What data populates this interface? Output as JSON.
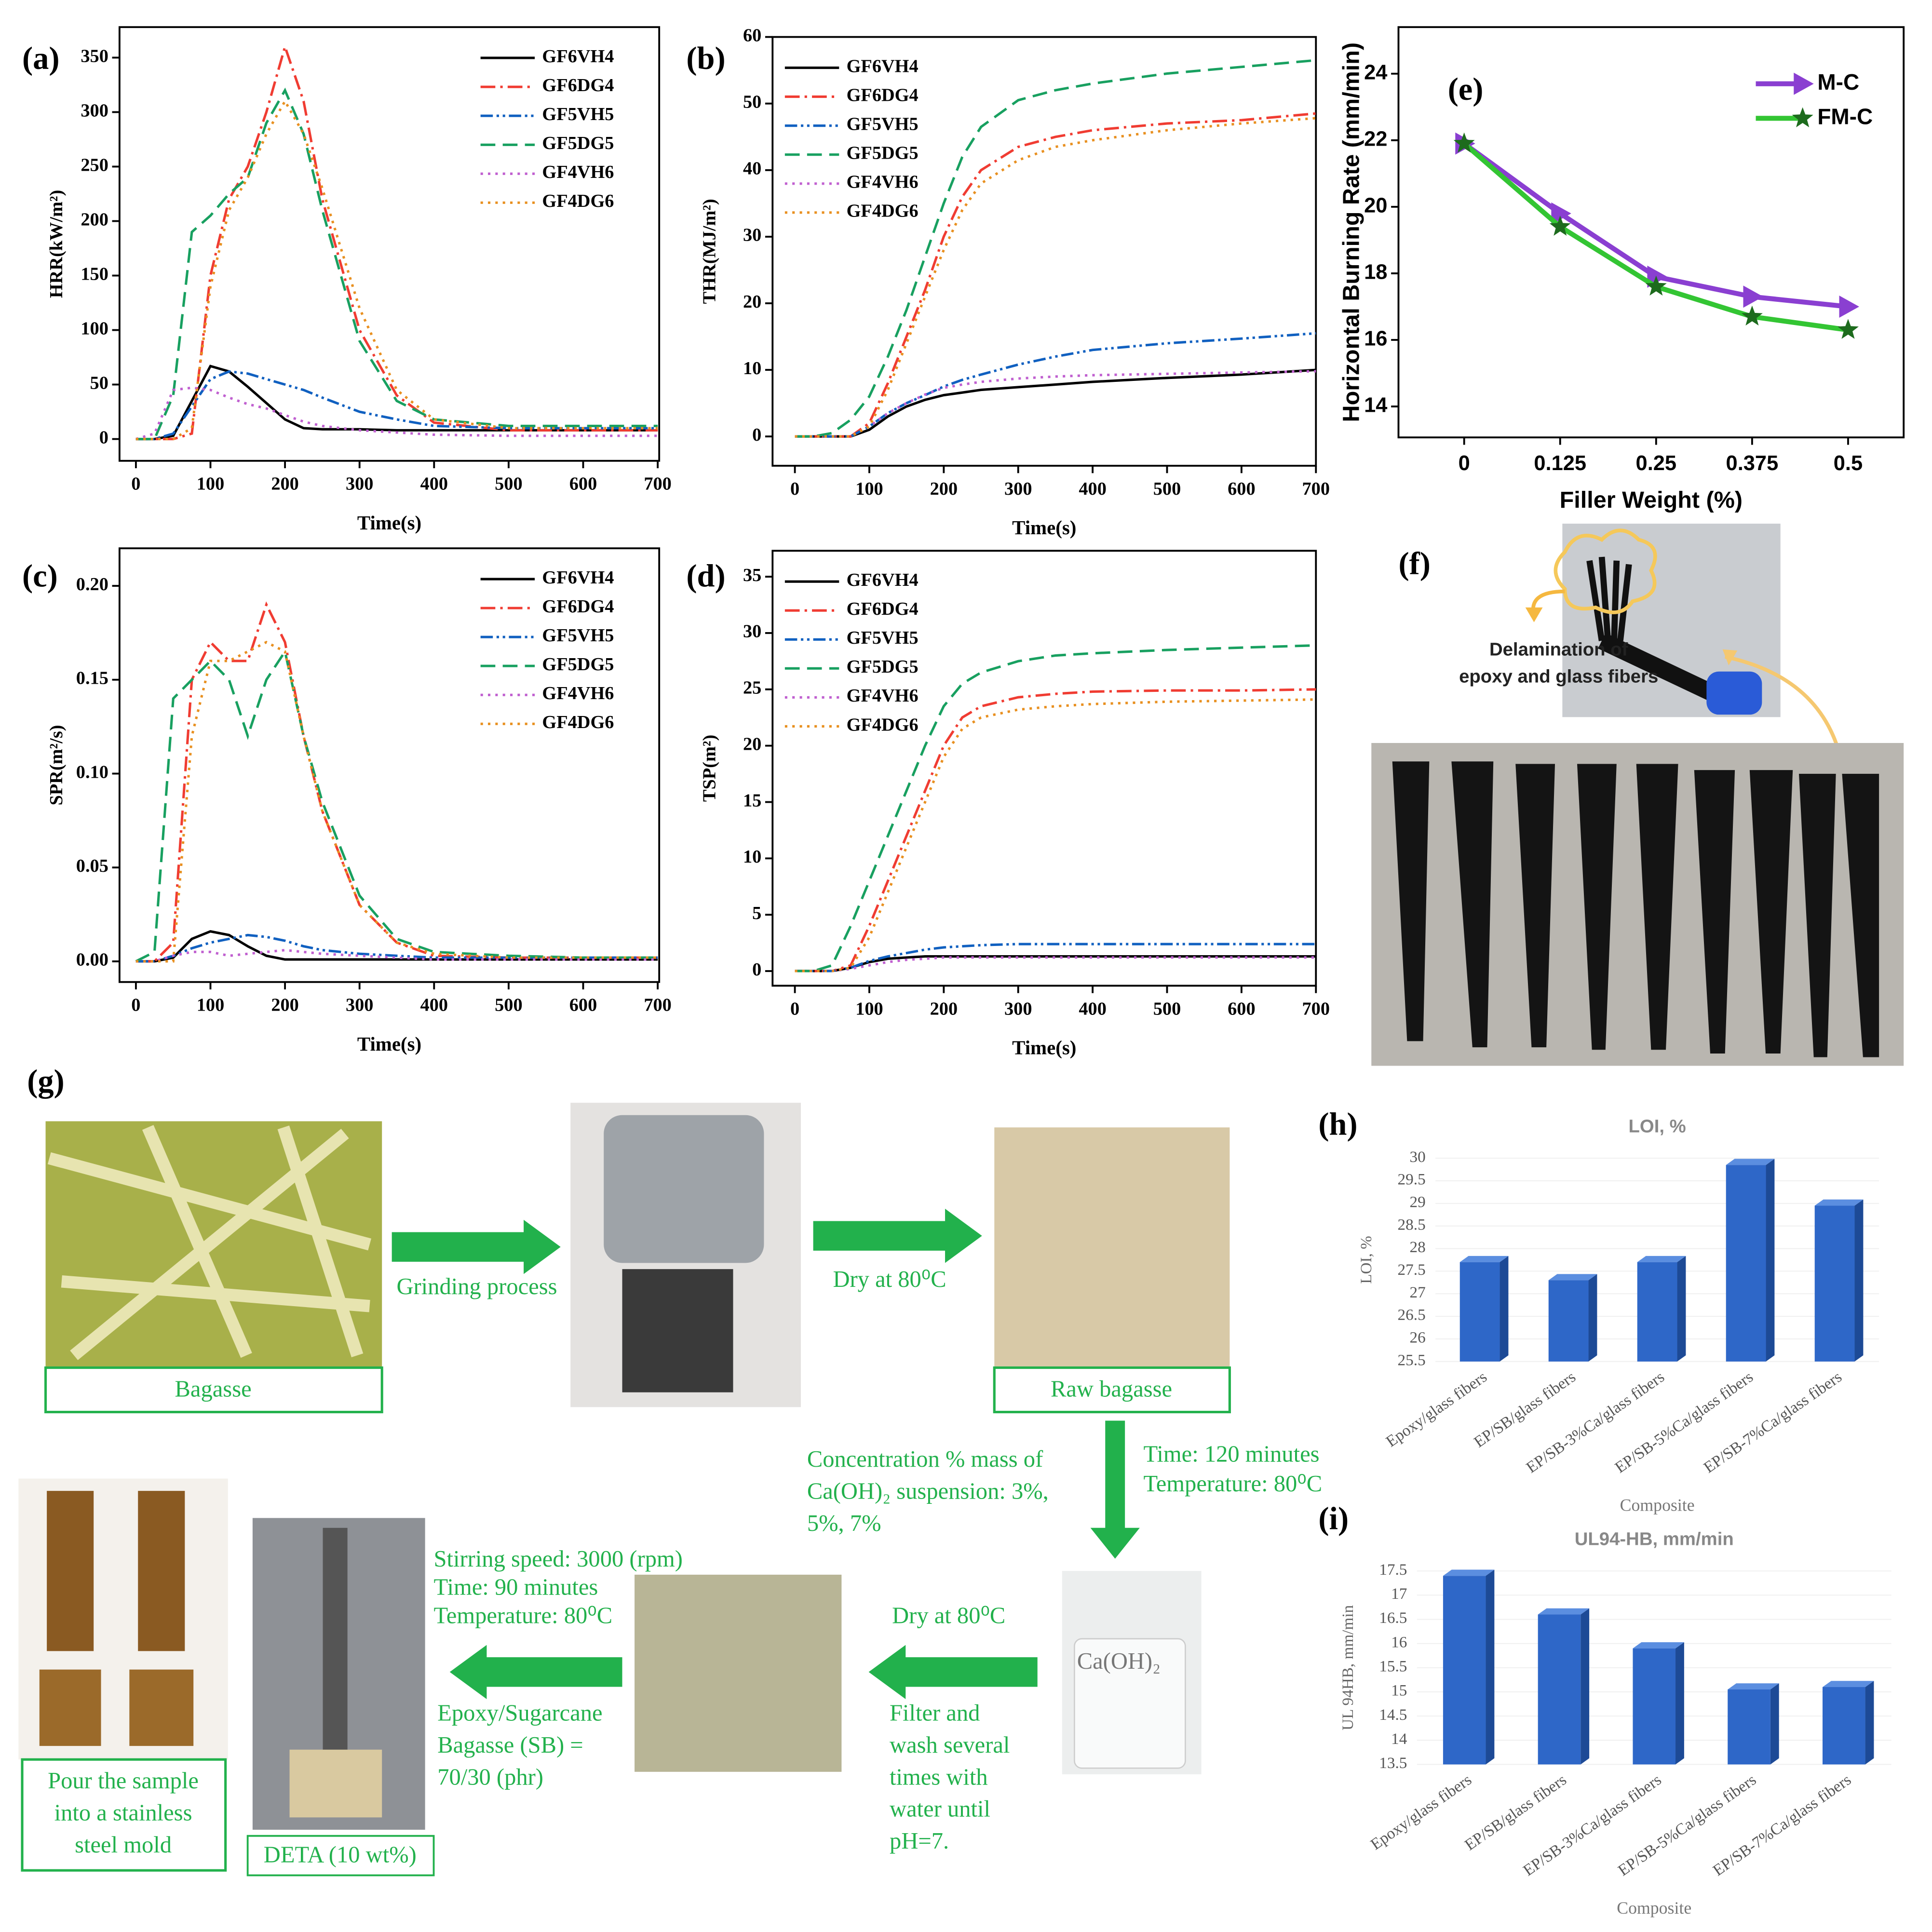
{
  "chart_data": [
    {
      "type": "line",
      "panel": "(a)",
      "xlabel": "Time(s)",
      "ylabel": "HRR(kW/m²)",
      "x": [
        0,
        25,
        50,
        75,
        100,
        125,
        150,
        175,
        200,
        225,
        250,
        300,
        350,
        400,
        500,
        600,
        700
      ],
      "xlim": [
        -22,
        702
      ],
      "xticks": [
        0,
        100,
        200,
        300,
        400,
        500,
        600,
        700
      ],
      "ylim": [
        -20,
        378
      ],
      "yticks": [
        0,
        50,
        100,
        150,
        200,
        250,
        300,
        350
      ],
      "legend": "upper right",
      "series": [
        {
          "name": "GF6VH4",
          "color": "#000000",
          "dash": "solid",
          "values": [
            0,
            0,
            3,
            35,
            67,
            62,
            48,
            33,
            18,
            10,
            9,
            9,
            8,
            8,
            8,
            8,
            8
          ]
        },
        {
          "name": "GF6DG4",
          "color": "#f03c32",
          "dash": "dashdot",
          "values": [
            0,
            0,
            0,
            5,
            150,
            220,
            250,
            300,
            360,
            310,
            220,
            100,
            40,
            15,
            8,
            8,
            8
          ]
        },
        {
          "name": "GF5VH5",
          "color": "#1060c0",
          "dash": "dashdotdot",
          "values": [
            0,
            0,
            5,
            30,
            55,
            62,
            60,
            55,
            50,
            45,
            38,
            25,
            18,
            12,
            10,
            10,
            10
          ]
        },
        {
          "name": "GF5DG5",
          "color": "#18a060",
          "dash": "dashed",
          "values": [
            0,
            0,
            40,
            190,
            205,
            225,
            240,
            290,
            320,
            280,
            210,
            90,
            35,
            18,
            12,
            12,
            12
          ]
        },
        {
          "name": "GF4VH6",
          "color": "#c060d0",
          "dash": "dotted",
          "values": [
            0,
            5,
            45,
            47,
            45,
            38,
            32,
            28,
            22,
            16,
            12,
            8,
            6,
            4,
            3,
            3,
            3
          ]
        },
        {
          "name": "GF4DG6",
          "color": "#e89020",
          "dash": "dotted",
          "values": [
            0,
            0,
            0,
            10,
            140,
            210,
            240,
            280,
            310,
            280,
            230,
            120,
            45,
            18,
            10,
            10,
            10
          ]
        }
      ]
    },
    {
      "type": "line",
      "panel": "(b)",
      "xlabel": "Time(s)",
      "ylabel": "THR(MJ/m²)",
      "x": [
        0,
        25,
        50,
        75,
        100,
        125,
        150,
        175,
        200,
        225,
        250,
        300,
        350,
        400,
        500,
        600,
        700
      ],
      "xlim": [
        -30,
        700
      ],
      "xticks": [
        0,
        100,
        200,
        300,
        400,
        500,
        600,
        700
      ],
      "ylim": [
        -4.4,
        60
      ],
      "yticks": [
        0,
        10,
        20,
        30,
        40,
        50,
        60
      ],
      "legend": "upper left",
      "series": [
        {
          "name": "GF6VH4",
          "color": "#000000",
          "dash": "solid",
          "values": [
            0,
            0,
            0,
            0,
            1,
            3,
            4.5,
            5.5,
            6.2,
            6.6,
            7,
            7.4,
            7.8,
            8.2,
            8.8,
            9.3,
            10
          ]
        },
        {
          "name": "GF6DG4",
          "color": "#f03c32",
          "dash": "dashdot",
          "values": [
            0,
            0,
            0,
            0,
            2,
            8,
            15,
            22,
            30,
            36,
            40,
            43.5,
            45,
            46,
            47,
            47.5,
            48.5
          ]
        },
        {
          "name": "GF5VH5",
          "color": "#1060c0",
          "dash": "dashdotdot",
          "values": [
            0,
            0,
            0,
            0,
            1.5,
            3.5,
            5,
            6.2,
            7.5,
            8.5,
            9.3,
            10.8,
            12,
            13,
            14,
            14.7,
            15.5
          ]
        },
        {
          "name": "GF5DG5",
          "color": "#18a060",
          "dash": "dashed",
          "values": [
            0,
            0,
            0.5,
            2.5,
            6,
            12,
            19,
            27,
            35,
            42,
            46.5,
            50.5,
            52,
            53,
            54.5,
            55.5,
            56.5
          ]
        },
        {
          "name": "GF4VH6",
          "color": "#c060d0",
          "dash": "dotted",
          "values": [
            0,
            0,
            0,
            0,
            1.5,
            3.5,
            5,
            6.3,
            7.3,
            7.8,
            8.2,
            8.7,
            9,
            9.2,
            9.4,
            9.6,
            9.8
          ]
        },
        {
          "name": "GF4DG6",
          "color": "#e89020",
          "dash": "dotted",
          "values": [
            0,
            0,
            0,
            0,
            1.5,
            7,
            14,
            21,
            28,
            34,
            38,
            41.5,
            43.5,
            44.5,
            46,
            47,
            47.8
          ]
        }
      ]
    },
    {
      "type": "line",
      "panel": "(c)",
      "xlabel": "Time(s)",
      "ylabel": "SPR(m²/s)",
      "x": [
        0,
        25,
        50,
        75,
        100,
        125,
        150,
        175,
        200,
        225,
        250,
        300,
        350,
        400,
        500,
        600,
        700
      ],
      "xlim": [
        -22,
        702
      ],
      "xticks": [
        0,
        100,
        200,
        300,
        400,
        500,
        600,
        700
      ],
      "ylim": [
        -0.011,
        0.22
      ],
      "yticks": [
        {
          "value": 0,
          "label": "0.00"
        },
        {
          "value": 0.05,
          "label": "0.05"
        },
        {
          "value": 0.1,
          "label": "0.10"
        },
        {
          "value": 0.15,
          "label": "0.15"
        },
        {
          "value": 0.2,
          "label": "0.20"
        }
      ],
      "legend": "upper right",
      "series": [
        {
          "name": "GF6VH4",
          "color": "#000000",
          "dash": "solid",
          "values": [
            0,
            0,
            0.002,
            0.012,
            0.016,
            0.014,
            0.008,
            0.003,
            0.001,
            0.001,
            0.001,
            0.001,
            0.001,
            0.001,
            0.001,
            0.001,
            0.001
          ]
        },
        {
          "name": "GF6DG4",
          "color": "#f03c32",
          "dash": "dashdot",
          "values": [
            0,
            0,
            0.01,
            0.15,
            0.17,
            0.16,
            0.16,
            0.19,
            0.17,
            0.12,
            0.08,
            0.03,
            0.01,
            0.003,
            0.002,
            0.002,
            0.002
          ]
        },
        {
          "name": "GF5VH5",
          "color": "#1060c0",
          "dash": "dashdotdot",
          "values": [
            0,
            0,
            0.003,
            0.007,
            0.01,
            0.012,
            0.014,
            0.013,
            0.011,
            0.008,
            0.006,
            0.004,
            0.003,
            0.002,
            0.002,
            0.002,
            0.002
          ]
        },
        {
          "name": "GF5DG5",
          "color": "#18a060",
          "dash": "dashed",
          "values": [
            0,
            0.005,
            0.14,
            0.15,
            0.16,
            0.15,
            0.12,
            0.15,
            0.165,
            0.12,
            0.085,
            0.035,
            0.012,
            0.005,
            0.003,
            0.002,
            0.002
          ]
        },
        {
          "name": "GF4VH6",
          "color": "#c060d0",
          "dash": "dotted",
          "values": [
            0,
            0,
            0.003,
            0.005,
            0.005,
            0.003,
            0.004,
            0.005,
            0.006,
            0.005,
            0.004,
            0.003,
            0.002,
            0.001,
            0.001,
            0.001,
            0.001
          ]
        },
        {
          "name": "GF4DG6",
          "color": "#e89020",
          "dash": "dotted",
          "values": [
            0,
            0,
            0,
            0.12,
            0.16,
            0.16,
            0.165,
            0.17,
            0.165,
            0.12,
            0.08,
            0.03,
            0.01,
            0.004,
            0.002,
            0.002,
            0.002
          ]
        }
      ]
    },
    {
      "type": "line",
      "panel": "(d)",
      "xlabel": "Time(s)",
      "ylabel": "TSP(m²)",
      "x": [
        0,
        25,
        50,
        75,
        100,
        125,
        150,
        175,
        200,
        225,
        250,
        300,
        350,
        400,
        500,
        600,
        700
      ],
      "xlim": [
        -30,
        700
      ],
      "xticks": [
        0,
        100,
        200,
        300,
        400,
        500,
        600,
        700
      ],
      "ylim": [
        -1.3,
        37.3
      ],
      "yticks": [
        0,
        5,
        10,
        15,
        20,
        25,
        30,
        35
      ],
      "legend": "upper left",
      "series": [
        {
          "name": "GF6VH4",
          "color": "#000000",
          "dash": "solid",
          "values": [
            0,
            0,
            0,
            0.3,
            0.8,
            1.1,
            1.2,
            1.3,
            1.3,
            1.3,
            1.3,
            1.3,
            1.3,
            1.3,
            1.3,
            1.3,
            1.3
          ]
        },
        {
          "name": "GF6DG4",
          "color": "#f03c32",
          "dash": "dashdot",
          "values": [
            0,
            0,
            0,
            0.5,
            4,
            8,
            12,
            16,
            20,
            22.5,
            23.5,
            24.3,
            24.6,
            24.8,
            24.9,
            24.9,
            25
          ]
        },
        {
          "name": "GF5VH5",
          "color": "#1060c0",
          "dash": "dashdotdot",
          "values": [
            0,
            0,
            0,
            0.3,
            0.9,
            1.3,
            1.6,
            1.9,
            2.1,
            2.2,
            2.3,
            2.4,
            2.4,
            2.4,
            2.4,
            2.4,
            2.4
          ]
        },
        {
          "name": "GF5DG5",
          "color": "#18a060",
          "dash": "dashed",
          "values": [
            0,
            0,
            0.5,
            4,
            8,
            12,
            16,
            20,
            23.5,
            25.5,
            26.5,
            27.5,
            28,
            28.2,
            28.5,
            28.7,
            28.9
          ]
        },
        {
          "name": "GF4VH6",
          "color": "#c060d0",
          "dash": "dotted",
          "values": [
            0,
            0,
            0,
            0.2,
            0.5,
            0.8,
            1,
            1.1,
            1.2,
            1.2,
            1.2,
            1.2,
            1.2,
            1.2,
            1.2,
            1.2,
            1.2
          ]
        },
        {
          "name": "GF4DG6",
          "color": "#e89020",
          "dash": "dotted",
          "values": [
            0,
            0,
            0,
            0.3,
            3,
            7,
            11,
            15,
            19,
            21.5,
            22.5,
            23.2,
            23.5,
            23.7,
            23.9,
            24,
            24.1
          ]
        }
      ]
    },
    {
      "type": "line",
      "panel": "(e)",
      "xlabel": "Filler Weight (%)",
      "ylabel": "Horizontal Burning Rate (mm/min)",
      "categories": [
        "0",
        "0.125",
        "0.25",
        "0.375",
        "0.5"
      ],
      "ylim": [
        13.07,
        25.4
      ],
      "yticks": [
        14,
        16,
        18,
        20,
        22,
        24
      ],
      "legend": "upper right",
      "series": [
        {
          "name": "M-C",
          "color": "#8a3fd1",
          "dash": "solid",
          "marker": "triangle",
          "values": [
            21.9,
            19.8,
            17.9,
            17.3,
            17.0
          ]
        },
        {
          "name": "FM-C",
          "color": "#33c533",
          "dash": "solid",
          "marker": "star",
          "values": [
            21.9,
            19.4,
            17.6,
            16.7,
            16.3
          ]
        }
      ]
    },
    {
      "type": "bar",
      "panel": "(h)",
      "title": "LOI, %",
      "ylabel": "LOI, %",
      "xlabel": "Composite",
      "color": "#2e67c8",
      "categories": [
        "Epoxy/glass fibers",
        "EP/SB/glass fibers",
        "EP/SB-3%Ca/glass fibers",
        "EP/SB-5%Ca/glass fibers",
        "EP/SB-7%Ca/glass fibers"
      ],
      "values": [
        27.7,
        27.3,
        27.7,
        29.85,
        28.95
      ],
      "ylim": [
        25.5,
        30
      ],
      "yticks": [
        25.5,
        26,
        26.5,
        27,
        27.5,
        28,
        28.5,
        29,
        29.5,
        30
      ]
    },
    {
      "type": "bar",
      "panel": "(i)",
      "title": "UL94-HB, mm/min",
      "ylabel": "UL 94HB, mm/min",
      "xlabel": "Composite",
      "color": "#2e67c8",
      "categories": [
        "Epoxy/glass fibers",
        "EP/SB/glass fibers",
        "EP/SB-3%Ca/glass fibers",
        "EP/SB-5%Ca/glass fibers",
        "EP/SB-7%Ca/glass fibers"
      ],
      "values": [
        17.4,
        16.6,
        15.9,
        15.05,
        15.1
      ],
      "ylim": [
        13.5,
        17.5
      ],
      "yticks": [
        13.5,
        14,
        14.5,
        15,
        15.5,
        16,
        16.5,
        17,
        17.5
      ]
    }
  ],
  "photo_panel": {
    "label": "(f)",
    "annotation": [
      "Delamination of",
      "epoxy and glass fibers"
    ]
  },
  "process": {
    "label": "(g)",
    "bagasse": "Bagasse",
    "grinding": "Grinding process",
    "dry_1": "Dry at 80⁰C",
    "raw_bagasse": "Raw bagasse",
    "treatment_time": "Time: 120 minutes",
    "treatment_temperature": "Temperature: 80⁰C",
    "concentration": [
      "Concentration % mass of",
      "Ca(OH)₂ suspension: 3%,",
      "5%, 7%"
    ],
    "suspension": "Ca(OH)₂",
    "dry_2": "Dry at 80⁰C",
    "filter": [
      "Filter and",
      "wash several",
      "times with",
      "water until",
      "pH=7."
    ],
    "stirring": [
      "Stirring speed: 3000 (rpm)",
      "Time: 90 minutes",
      "Temperature: 80⁰C"
    ],
    "mix": [
      "Epoxy/Sugarcane",
      "Bagasse (SB) =",
      "70/30 (phr)"
    ],
    "curing_agent": "DETA (10 wt%)",
    "mold": [
      "Pour the sample",
      "into a stainless",
      "steel mold"
    ]
  }
}
